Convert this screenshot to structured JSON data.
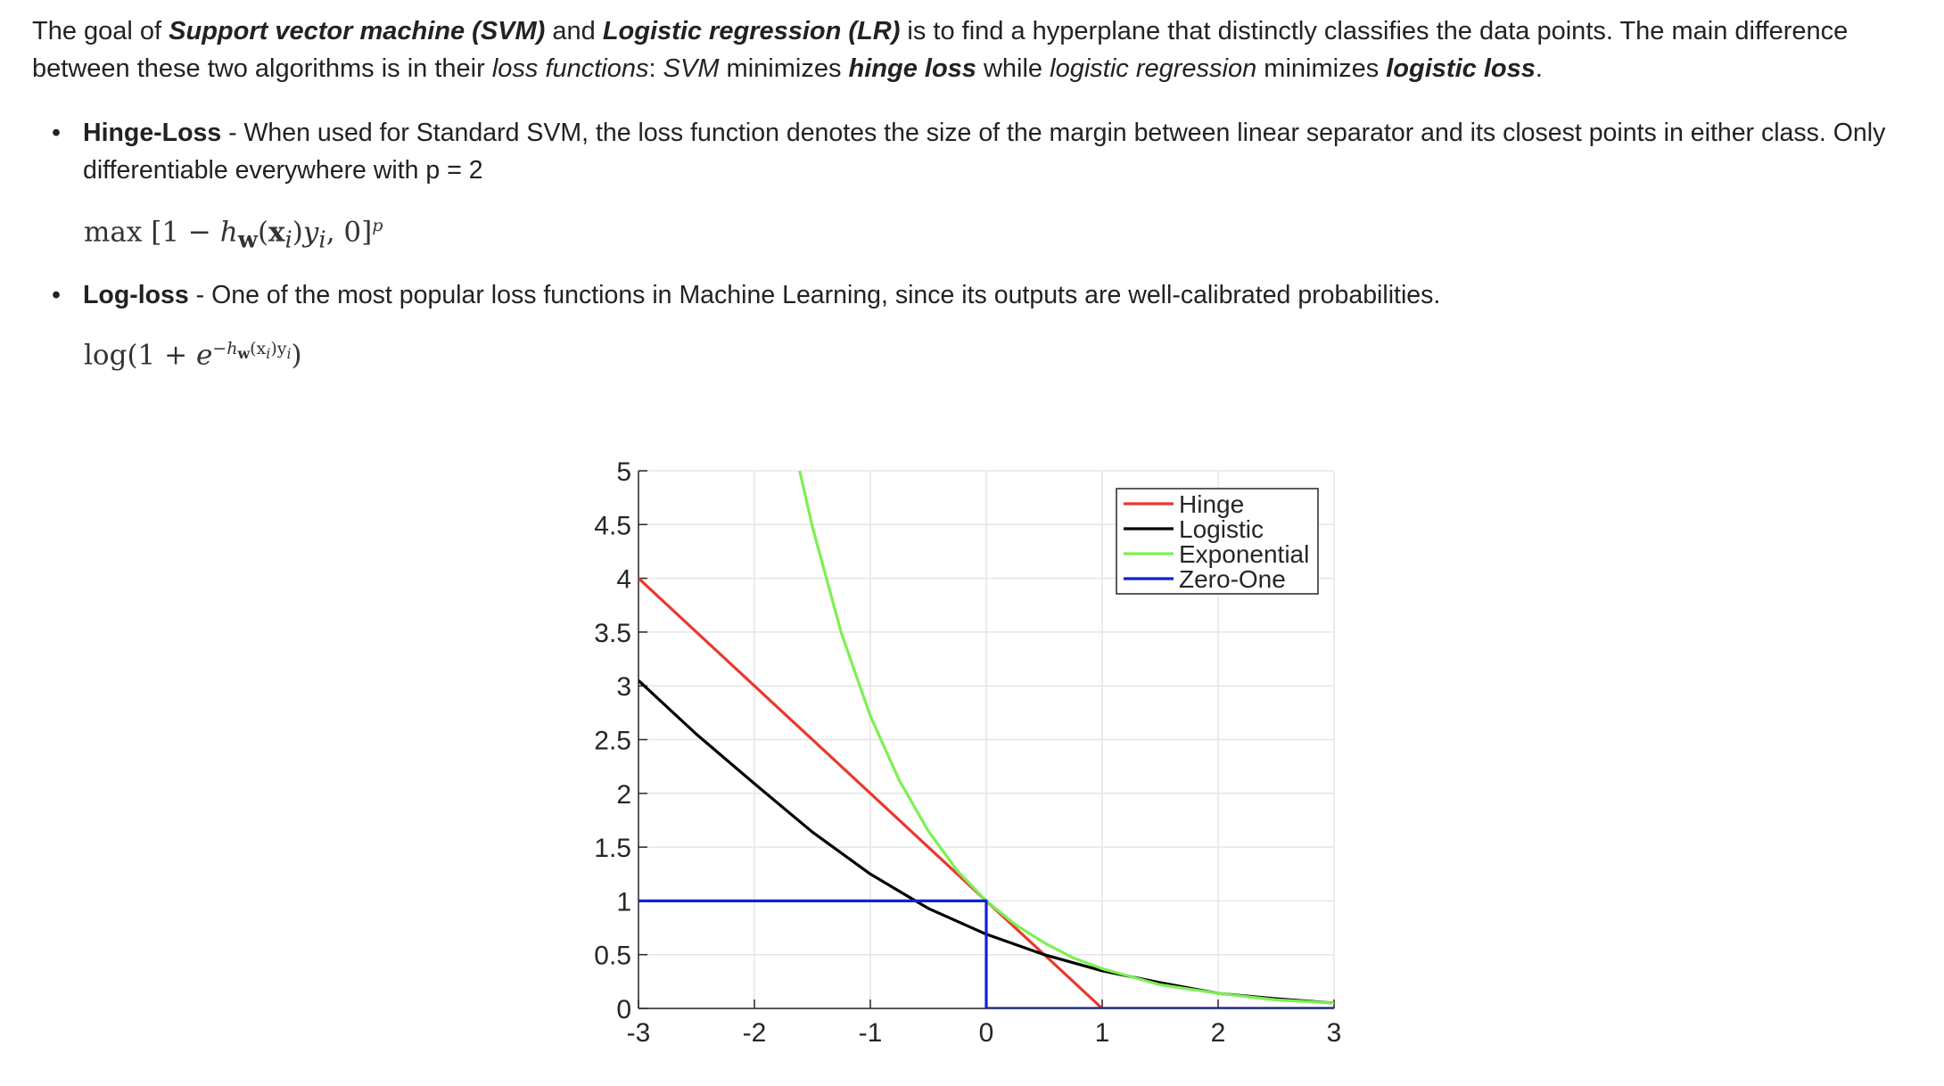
{
  "intro": {
    "p1": "The goal of ",
    "svm_name": "Support vector machine (SVM)",
    "p2": " and ",
    "lr_name": "Logistic regression (LR)",
    "p3": " is to find a hyperplane that distinctly classifies the data points. The main difference between these two algorithms is in their ",
    "loss_functions": "loss functions",
    "p4": ": ",
    "svm_abbr": "SVM",
    "p5": " minimizes ",
    "hinge_loss": "hinge loss",
    "p6": " while ",
    "logistic_regression": "logistic regression",
    "p7": " minimizes ",
    "logistic_loss": "logistic loss",
    "p8": "."
  },
  "bullets": [
    {
      "term": "Hinge-Loss",
      "text": " - When used for Standard SVM, the loss function denotes the size of the margin between linear separator and its closest points in either class. Only differentiable everywhere with p = 2"
    },
    {
      "term": "Log-loss",
      "text": " - One of the most popular loss functions in Machine Learning, since its outputs are well-calibrated probabilities."
    }
  ],
  "formulas": {
    "hinge": {
      "max": "max",
      "open": "[1 − ",
      "h": "h",
      "w": "w",
      "args_open": "(",
      "x": "x",
      "i": "i",
      "args_close": ")",
      "y": "y",
      "yi": "i",
      "rest": ", 0]",
      "p": "p"
    },
    "log": {
      "log": "log",
      "open": "(1 + ",
      "e": "e",
      "exponent": "−h",
      "exp_w": "w",
      "exp_args": "(x",
      "exp_i": "i",
      "exp_close": ")y",
      "exp_yi": "i",
      "close": ")"
    }
  },
  "chart_data": {
    "type": "line",
    "xlim": [
      -3,
      3
    ],
    "ylim": [
      0,
      5
    ],
    "xticks": [
      "-3",
      "-2",
      "-1",
      "0",
      "1",
      "2",
      "3"
    ],
    "yticks": [
      "0",
      "0.5",
      "1",
      "1.5",
      "2",
      "2.5",
      "3",
      "3.5",
      "4",
      "4.5",
      "5"
    ],
    "grid": true,
    "legend_position": "top-right",
    "series": [
      {
        "name": "Hinge",
        "color": "#e8392f",
        "x": [
          -3,
          1,
          3
        ],
        "y": [
          4,
          0,
          0
        ]
      },
      {
        "name": "Logistic",
        "color": "#000000",
        "x": [
          -3,
          -2.5,
          -2,
          -1.5,
          -1,
          -0.5,
          0,
          0.5,
          1,
          1.5,
          2,
          2.5,
          3
        ],
        "y": [
          3.05,
          2.55,
          2.09,
          1.64,
          1.25,
          0.93,
          0.69,
          0.5,
          0.35,
          0.24,
          0.14,
          0.09,
          0.05
        ]
      },
      {
        "name": "Exponential",
        "color": "#7cf052",
        "x": [
          -1.61,
          -1.5,
          -1.25,
          -1,
          -0.75,
          -0.5,
          -0.25,
          0,
          0.25,
          0.5,
          0.75,
          1,
          1.5,
          2,
          2.5,
          3
        ],
        "y": [
          5.0,
          4.48,
          3.49,
          2.72,
          2.12,
          1.65,
          1.28,
          1.0,
          0.78,
          0.61,
          0.47,
          0.37,
          0.22,
          0.14,
          0.08,
          0.05
        ]
      },
      {
        "name": "Zero-One",
        "color": "#1022d6",
        "x": [
          -3,
          0,
          0,
          3
        ],
        "y": [
          1,
          1,
          0,
          0
        ]
      }
    ]
  }
}
